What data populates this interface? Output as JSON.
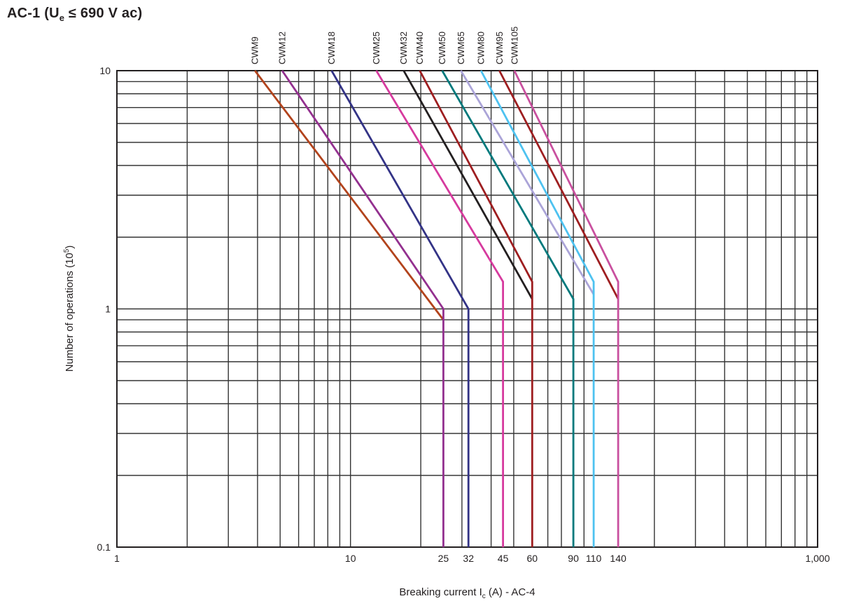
{
  "header": {
    "title_prefix": "AC-1 (U",
    "title_sub": "e",
    "title_suffix": " ≤ 690 V ac)"
  },
  "axis_labels": {
    "x_prefix": "Breaking current I",
    "x_sub": "c",
    "x_suffix": " (A) - AC-4",
    "y_prefix": "Number of operations (10",
    "y_sup": "5",
    "y_suffix": ")"
  },
  "chart_data": {
    "type": "line",
    "title": "AC-1 (Ue ≤ 690 V ac)",
    "xlabel": "Breaking current Ic (A) - AC-4",
    "ylabel": "Number of operations (10^5)",
    "x_scale": "log",
    "y_scale": "log",
    "xlim": [
      1,
      1000
    ],
    "ylim": [
      0.1,
      10
    ],
    "grid": true,
    "legend_position": "top-rotated-labels",
    "colors": {
      "grid": "#343434",
      "frame": "#231f20",
      "text": "#231f20"
    },
    "x_ticks": [
      {
        "v": 1,
        "t": "1"
      },
      {
        "v": 10,
        "t": "10"
      },
      {
        "v": 25,
        "t": "25"
      },
      {
        "v": 32,
        "t": "32"
      },
      {
        "v": 45,
        "t": "45"
      },
      {
        "v": 60,
        "t": "60"
      },
      {
        "v": 90,
        "t": "90"
      },
      {
        "v": 110,
        "t": "110"
      },
      {
        "v": 140,
        "t": "140"
      },
      {
        "v": 1000,
        "t": "1,000"
      }
    ],
    "y_ticks": [
      {
        "v": 10,
        "t": "10"
      },
      {
        "v": 1,
        "t": "1"
      },
      {
        "v": 0.1,
        "t": "0.1"
      }
    ],
    "series": [
      {
        "name": "CWM9",
        "color": "#b2431c",
        "points": [
          [
            3.9,
            10
          ],
          [
            25,
            0.9
          ]
        ],
        "drop_to_bottom": false
      },
      {
        "name": "CWM12",
        "color": "#93308f",
        "points": [
          [
            5.1,
            10
          ],
          [
            25,
            1.0
          ]
        ],
        "drop_to_bottom": true
      },
      {
        "name": "CWM18",
        "color": "#333386",
        "points": [
          [
            8.3,
            10
          ],
          [
            32,
            1.0
          ]
        ],
        "drop_to_bottom": true
      },
      {
        "name": "CWM25",
        "color": "#d63a9e",
        "points": [
          [
            12.9,
            10
          ],
          [
            45,
            1.3
          ]
        ],
        "drop_to_bottom": true
      },
      {
        "name": "CWM32",
        "color": "#231f20",
        "points": [
          [
            16.9,
            10
          ],
          [
            60,
            1.1
          ]
        ],
        "drop_to_bottom": false
      },
      {
        "name": "CWM40",
        "color": "#9e1e20",
        "points": [
          [
            19.8,
            10
          ],
          [
            60,
            1.3
          ]
        ],
        "drop_to_bottom": true
      },
      {
        "name": "CWM50",
        "color": "#00797c",
        "points": [
          [
            24.7,
            10
          ],
          [
            90,
            1.1
          ]
        ],
        "drop_to_bottom": true
      },
      {
        "name": "CWM65",
        "color": "#aba4d8",
        "points": [
          [
            29.7,
            10
          ],
          [
            110,
            1.15
          ]
        ],
        "drop_to_bottom": false
      },
      {
        "name": "CWM80",
        "color": "#4ec2f0",
        "points": [
          [
            36.2,
            10
          ],
          [
            110,
            1.3
          ]
        ],
        "drop_to_bottom": true
      },
      {
        "name": "CWM95",
        "color": "#9e1e20",
        "points": [
          [
            43.4,
            10
          ],
          [
            140,
            1.1
          ]
        ],
        "drop_to_bottom": false
      },
      {
        "name": "CWM105",
        "color": "#c9509f",
        "points": [
          [
            50.3,
            10
          ],
          [
            140,
            1.3
          ]
        ],
        "drop_to_bottom": true
      }
    ]
  }
}
